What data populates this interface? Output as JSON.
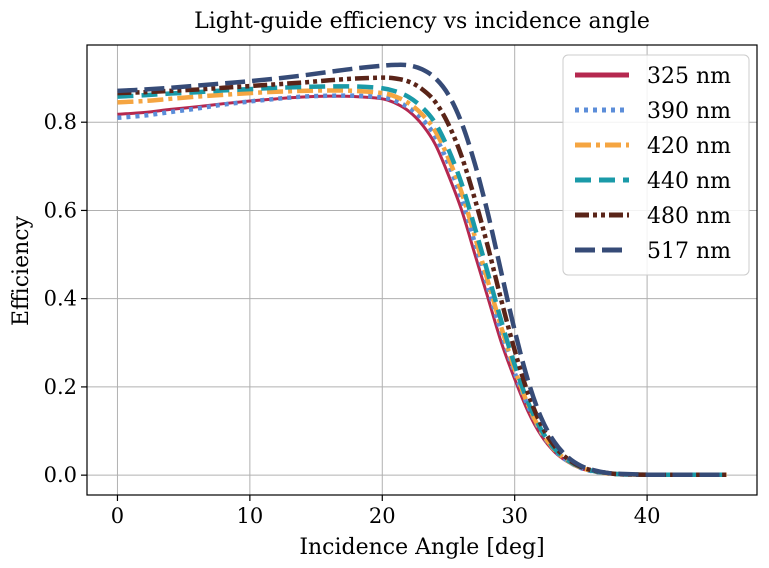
{
  "chart_data": {
    "type": "line",
    "title": "Light-guide efficiency vs incidence angle",
    "xlabel": "Incidence Angle [deg]",
    "ylabel": "Efficiency",
    "xlim": [
      -2.3,
      48.3
    ],
    "ylim": [
      -0.045,
      0.975
    ],
    "xticks": [
      0,
      10,
      20,
      30,
      40
    ],
    "xtick_labels": [
      "0",
      "10",
      "20",
      "30",
      "40"
    ],
    "yticks": [
      0.0,
      0.2,
      0.4,
      0.6,
      0.8
    ],
    "ytick_labels": [
      "0.0",
      "0.2",
      "0.4",
      "0.6",
      "0.8"
    ],
    "grid": true,
    "legend_position": "top-right",
    "x": [
      0,
      2,
      4,
      6,
      8,
      10,
      12,
      14,
      16,
      18,
      20,
      21,
      22,
      23,
      24,
      25,
      26,
      27,
      28,
      29,
      30,
      31,
      32,
      33,
      34,
      35,
      36,
      37,
      38,
      40,
      42,
      44,
      46
    ],
    "series": [
      {
        "name": "325 nm",
        "color": "#b5284f",
        "dash": "solid",
        "values": [
          0.818,
          0.822,
          0.829,
          0.835,
          0.842,
          0.848,
          0.853,
          0.857,
          0.859,
          0.858,
          0.853,
          0.843,
          0.825,
          0.795,
          0.75,
          0.68,
          0.6,
          0.5,
          0.4,
          0.3,
          0.218,
          0.145,
          0.09,
          0.053,
          0.03,
          0.015,
          0.008,
          0.004,
          0.002,
          0.001,
          0.001,
          0.001,
          0.001
        ]
      },
      {
        "name": "390 nm",
        "color": "#5b8dd9",
        "dash": "dot",
        "values": [
          0.81,
          0.815,
          0.823,
          0.831,
          0.84,
          0.847,
          0.853,
          0.858,
          0.86,
          0.86,
          0.856,
          0.848,
          0.833,
          0.808,
          0.768,
          0.705,
          0.625,
          0.525,
          0.423,
          0.322,
          0.232,
          0.157,
          0.097,
          0.057,
          0.032,
          0.016,
          0.008,
          0.004,
          0.002,
          0.001,
          0.001,
          0.001,
          0.001
        ]
      },
      {
        "name": "420 nm",
        "color": "#f5a541",
        "dash": "dashdot",
        "values": [
          0.845,
          0.848,
          0.853,
          0.858,
          0.862,
          0.866,
          0.869,
          0.871,
          0.872,
          0.871,
          0.866,
          0.858,
          0.843,
          0.818,
          0.78,
          0.718,
          0.64,
          0.54,
          0.437,
          0.334,
          0.24,
          0.16,
          0.099,
          0.058,
          0.033,
          0.017,
          0.009,
          0.004,
          0.002,
          0.001,
          0.001,
          0.001,
          0.001
        ]
      },
      {
        "name": "440 nm",
        "color": "#1a9aa8",
        "dash": "dash",
        "values": [
          0.858,
          0.861,
          0.865,
          0.868,
          0.872,
          0.875,
          0.878,
          0.88,
          0.881,
          0.881,
          0.877,
          0.87,
          0.857,
          0.834,
          0.798,
          0.738,
          0.66,
          0.56,
          0.455,
          0.348,
          0.25,
          0.166,
          0.103,
          0.06,
          0.034,
          0.018,
          0.009,
          0.005,
          0.002,
          0.001,
          0.001,
          0.001,
          0.001
        ]
      },
      {
        "name": "480 nm",
        "color": "#5a2418",
        "dash": "dashdotdot",
        "values": [
          0.866,
          0.868,
          0.871,
          0.874,
          0.878,
          0.882,
          0.886,
          0.89,
          0.895,
          0.899,
          0.901,
          0.899,
          0.892,
          0.875,
          0.846,
          0.795,
          0.722,
          0.625,
          0.515,
          0.395,
          0.283,
          0.186,
          0.114,
          0.066,
          0.037,
          0.019,
          0.01,
          0.005,
          0.002,
          0.001,
          0.001,
          0.001,
          0.001
        ]
      },
      {
        "name": "517 nm",
        "color": "#364b77",
        "dash": "longdash",
        "values": [
          0.871,
          0.874,
          0.878,
          0.883,
          0.888,
          0.893,
          0.899,
          0.906,
          0.914,
          0.922,
          0.928,
          0.93,
          0.929,
          0.92,
          0.9,
          0.862,
          0.798,
          0.705,
          0.59,
          0.458,
          0.328,
          0.215,
          0.13,
          0.075,
          0.041,
          0.021,
          0.011,
          0.005,
          0.003,
          0.001,
          0.001,
          0.001,
          0.001
        ]
      }
    ]
  }
}
